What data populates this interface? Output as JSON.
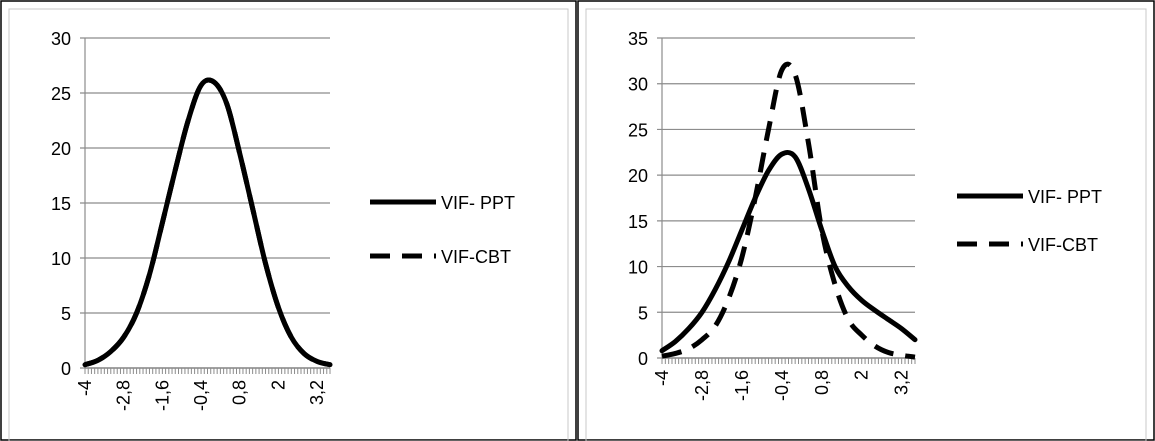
{
  "chart_data": [
    {
      "type": "line",
      "title": "",
      "xlabel": "",
      "ylabel": "",
      "ylim": [
        0,
        30
      ],
      "yticks": [
        "0",
        "5",
        "10",
        "15",
        "20",
        "25",
        "30"
      ],
      "xtick_labels": [
        "-4",
        "-2,8",
        "-1,6",
        "-0,4",
        "0,8",
        "2",
        "3,2"
      ],
      "xtick_values": [
        -4,
        -2.8,
        -1.6,
        -0.4,
        0.8,
        2,
        3.2
      ],
      "xlim": [
        -4,
        3.6
      ],
      "grid": true,
      "legend_position": "right",
      "series": [
        {
          "name": "VIF- PPT",
          "style": "solid",
          "x": [
            -4,
            -3.6,
            -3.2,
            -2.8,
            -2.4,
            -2.0,
            -1.6,
            -1.2,
            -0.8,
            -0.4,
            0.0,
            0.4,
            0.8,
            1.2,
            1.6,
            2.0,
            2.4,
            2.8,
            3.2,
            3.6
          ],
          "y": [
            0.3,
            0.7,
            1.5,
            2.8,
            5.0,
            8.5,
            13.2,
            18.0,
            22.5,
            25.7,
            26.0,
            24.0,
            19.5,
            14.5,
            9.5,
            5.5,
            2.8,
            1.3,
            0.6,
            0.3
          ]
        },
        {
          "name": "VIF-CBT",
          "style": "dashed",
          "x": [
            -4,
            -3.6,
            -3.2,
            -2.8,
            -2.4,
            -2.0,
            -1.6,
            -1.2,
            -0.8,
            -0.4,
            0.0,
            0.4,
            0.8,
            1.2,
            1.6,
            2.0,
            2.4,
            2.8,
            3.2,
            3.6
          ],
          "y": [
            0.3,
            0.7,
            1.5,
            2.8,
            5.0,
            8.5,
            13.2,
            18.0,
            22.5,
            25.7,
            26.0,
            24.0,
            19.5,
            14.5,
            9.5,
            5.5,
            2.8,
            1.3,
            0.6,
            0.3
          ]
        }
      ]
    },
    {
      "type": "line",
      "title": "",
      "xlabel": "",
      "ylabel": "",
      "ylim": [
        0,
        35
      ],
      "yticks": [
        "0",
        "5",
        "10",
        "15",
        "20",
        "25",
        "30",
        "35"
      ],
      "xtick_labels": [
        "-4",
        "-2,8",
        "-1,6",
        "-0,4",
        "0,8",
        "2",
        "3,2"
      ],
      "xtick_values": [
        -4,
        -2.8,
        -1.6,
        -0.4,
        0.8,
        2,
        3.2
      ],
      "xlim": [
        -4,
        3.6
      ],
      "grid": true,
      "legend_position": "right",
      "series": [
        {
          "name": "VIF- PPT",
          "style": "solid",
          "x": [
            -4,
            -3.6,
            -3.2,
            -2.8,
            -2.4,
            -2.0,
            -1.6,
            -1.2,
            -0.8,
            -0.4,
            0.0,
            0.4,
            0.8,
            1.2,
            1.6,
            2.0,
            2.4,
            2.8,
            3.2,
            3.6
          ],
          "y": [
            0.8,
            1.8,
            3.2,
            5.0,
            7.5,
            10.5,
            14.0,
            17.5,
            20.5,
            22.3,
            22.0,
            18.5,
            14.0,
            10.0,
            7.8,
            6.3,
            5.2,
            4.2,
            3.2,
            2.0
          ]
        },
        {
          "name": "VIF-CBT",
          "style": "dashed",
          "x": [
            -4,
            -3.6,
            -3.2,
            -2.8,
            -2.4,
            -2.0,
            -1.6,
            -1.2,
            -0.8,
            -0.4,
            0.0,
            0.4,
            0.8,
            1.2,
            1.6,
            2.0,
            2.4,
            2.8,
            3.2,
            3.6
          ],
          "y": [
            0.2,
            0.5,
            1.0,
            2.0,
            3.5,
            6.5,
            11.0,
            17.5,
            25.0,
            31.5,
            31.0,
            23.5,
            14.0,
            8.0,
            4.2,
            2.5,
            1.3,
            0.6,
            0.3,
            0.1
          ]
        }
      ]
    }
  ]
}
